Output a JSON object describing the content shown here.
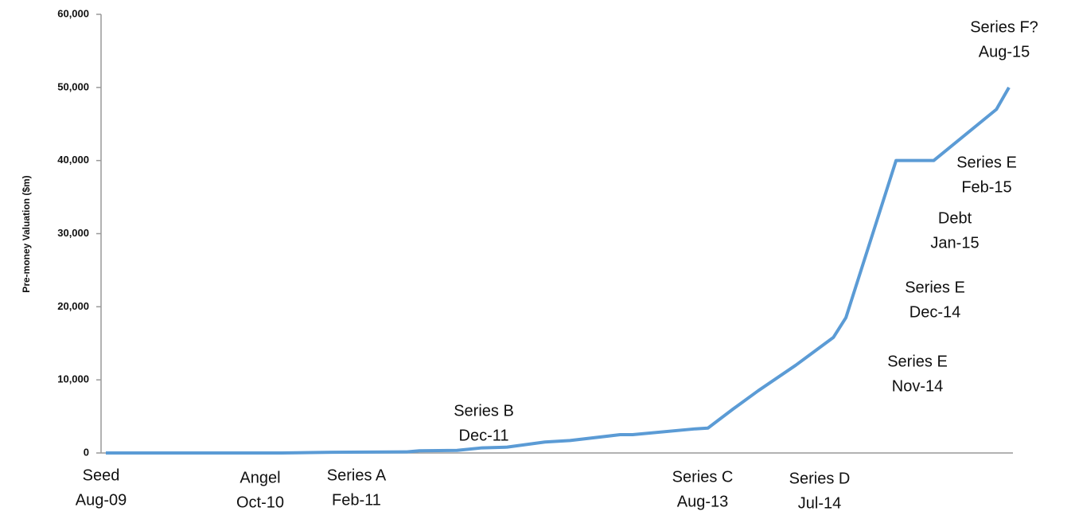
{
  "chart_data": {
    "type": "line",
    "y_label": "Pre-money Valuation ($m)",
    "x": [
      0,
      14,
      18,
      24,
      25,
      28,
      30,
      32,
      35,
      37,
      41,
      42,
      47,
      48,
      50,
      52,
      55,
      58,
      59,
      63,
      66,
      71,
      72
    ],
    "series": [
      {
        "color": "#5b9bd5",
        "values": [
          0,
          0,
          100,
          150,
          300,
          350,
          700,
          800,
          1500,
          1700,
          2500,
          2500,
          3300,
          3400,
          6000,
          8500,
          12000,
          15800,
          18500,
          40000,
          40000,
          47000,
          50000
        ]
      }
    ],
    "xlim": [
      0,
      72
    ],
    "ylim": [
      0,
      60000
    ],
    "yticks": [
      {
        "value": 0,
        "label": "0"
      },
      {
        "value": 10000,
        "label": "10,000"
      },
      {
        "value": 20000,
        "label": "20,000"
      },
      {
        "value": 30000,
        "label": "30,000"
      },
      {
        "value": 40000,
        "label": "40,000"
      },
      {
        "value": 50000,
        "label": "50,000"
      },
      {
        "value": 60000,
        "label": "60,000"
      }
    ],
    "annotations": [
      {
        "lines": [
          "Seed",
          "Aug-09"
        ]
      },
      {
        "lines": [
          "Angel",
          "Oct-10"
        ]
      },
      {
        "lines": [
          "Series A",
          "Feb-11"
        ]
      },
      {
        "lines": [
          "Series B",
          "Dec-11"
        ]
      },
      {
        "lines": [
          "Series C",
          "Aug-13"
        ]
      },
      {
        "lines": [
          "Series D",
          "Jul-14"
        ]
      },
      {
        "lines": [
          "Series E",
          "Nov-14"
        ]
      },
      {
        "lines": [
          "Series E",
          "Dec-14"
        ]
      },
      {
        "lines": [
          "Debt",
          "Jan-15"
        ]
      },
      {
        "lines": [
          "Series E",
          "Feb-15"
        ]
      },
      {
        "lines": [
          "Series F?",
          "Aug-15"
        ]
      }
    ]
  }
}
